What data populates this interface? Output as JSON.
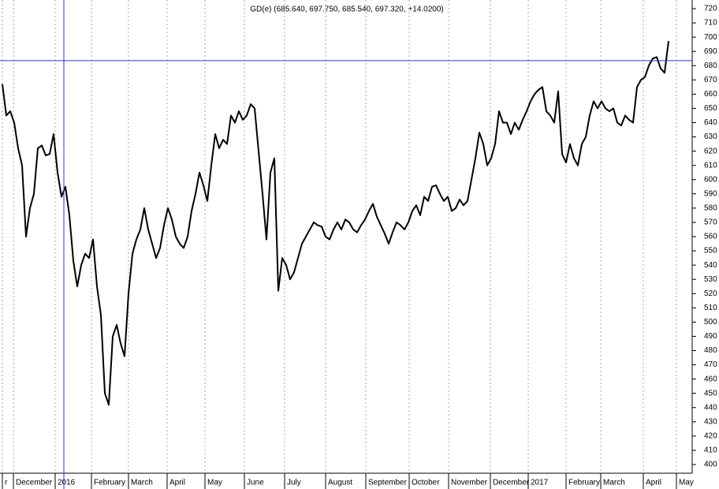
{
  "chart_data": {
    "type": "line",
    "title": "GD(e) (685.640, 697.750, 685.540, 697.320, +14.0200)",
    "series": [
      {
        "name": "GD(e)",
        "color": "#000000",
        "values": [
          667,
          645,
          648,
          640,
          622,
          610,
          560,
          580,
          590,
          622,
          624,
          617,
          618,
          632,
          605,
          588,
          595,
          575,
          543,
          525,
          540,
          548,
          545,
          558,
          525,
          505,
          450,
          442,
          490,
          498,
          485,
          476,
          520,
          548,
          558,
          565,
          580,
          565,
          555,
          545,
          552,
          568,
          580,
          572,
          560,
          555,
          552,
          560,
          578,
          590,
          605,
          596,
          585,
          610,
          632,
          622,
          628,
          625,
          645,
          640,
          648,
          642,
          645,
          653,
          650,
          620,
          590,
          558,
          605,
          615,
          522,
          545,
          540,
          530,
          535,
          545,
          555,
          560,
          565,
          570,
          568,
          567,
          560,
          558,
          565,
          570,
          565,
          572,
          570,
          565,
          563,
          568,
          572,
          578,
          583,
          574,
          568,
          562,
          555,
          563,
          570,
          568,
          565,
          570,
          578,
          582,
          575,
          588,
          585,
          595,
          596,
          590,
          585,
          588,
          578,
          580,
          586,
          582,
          585,
          600,
          615,
          633,
          625,
          610,
          615,
          625,
          648,
          640,
          640,
          632,
          640,
          635,
          642,
          648,
          655,
          660,
          663,
          665,
          648,
          645,
          640,
          662,
          618,
          612,
          625,
          615,
          610,
          625,
          630,
          645,
          655,
          650,
          655,
          650,
          648,
          650,
          640,
          638,
          645,
          642,
          640,
          665,
          670,
          672,
          680,
          685,
          686,
          678,
          675,
          697.32
        ]
      }
    ],
    "xlim": [
      0,
      171
    ],
    "xticks": [
      {
        "value": 0,
        "label": "r"
      },
      {
        "value": 2.8,
        "label": "December"
      },
      {
        "value": 13.4,
        "label": "2016"
      },
      {
        "value": 22.6,
        "label": "February"
      },
      {
        "value": 32,
        "label": "March"
      },
      {
        "value": 41.8,
        "label": "April"
      },
      {
        "value": 51.4,
        "label": "May"
      },
      {
        "value": 61.4,
        "label": "June"
      },
      {
        "value": 71.6,
        "label": "July"
      },
      {
        "value": 82,
        "label": "August"
      },
      {
        "value": 92.2,
        "label": "September"
      },
      {
        "value": 103.2,
        "label": "October"
      },
      {
        "value": 113.2,
        "label": "November"
      },
      {
        "value": 123.8,
        "label": "December"
      },
      {
        "value": 133.4,
        "label": "2017"
      },
      {
        "value": 143,
        "label": "February"
      },
      {
        "value": 151.8,
        "label": "March"
      },
      {
        "value": 162.6,
        "label": "April"
      },
      {
        "value": 171,
        "label": "May"
      }
    ],
    "ylim": [
      400,
      720
    ],
    "yticks": [
      400,
      410,
      420,
      430,
      440,
      450,
      460,
      470,
      480,
      490,
      500,
      510,
      520,
      530,
      540,
      550,
      560,
      570,
      580,
      590,
      600,
      610,
      620,
      630,
      640,
      650,
      660,
      670,
      680,
      690,
      700,
      710,
      720
    ],
    "grid": true,
    "crosshair": {
      "x": 15.6,
      "y": 683.5,
      "color": "#3333cc"
    }
  }
}
